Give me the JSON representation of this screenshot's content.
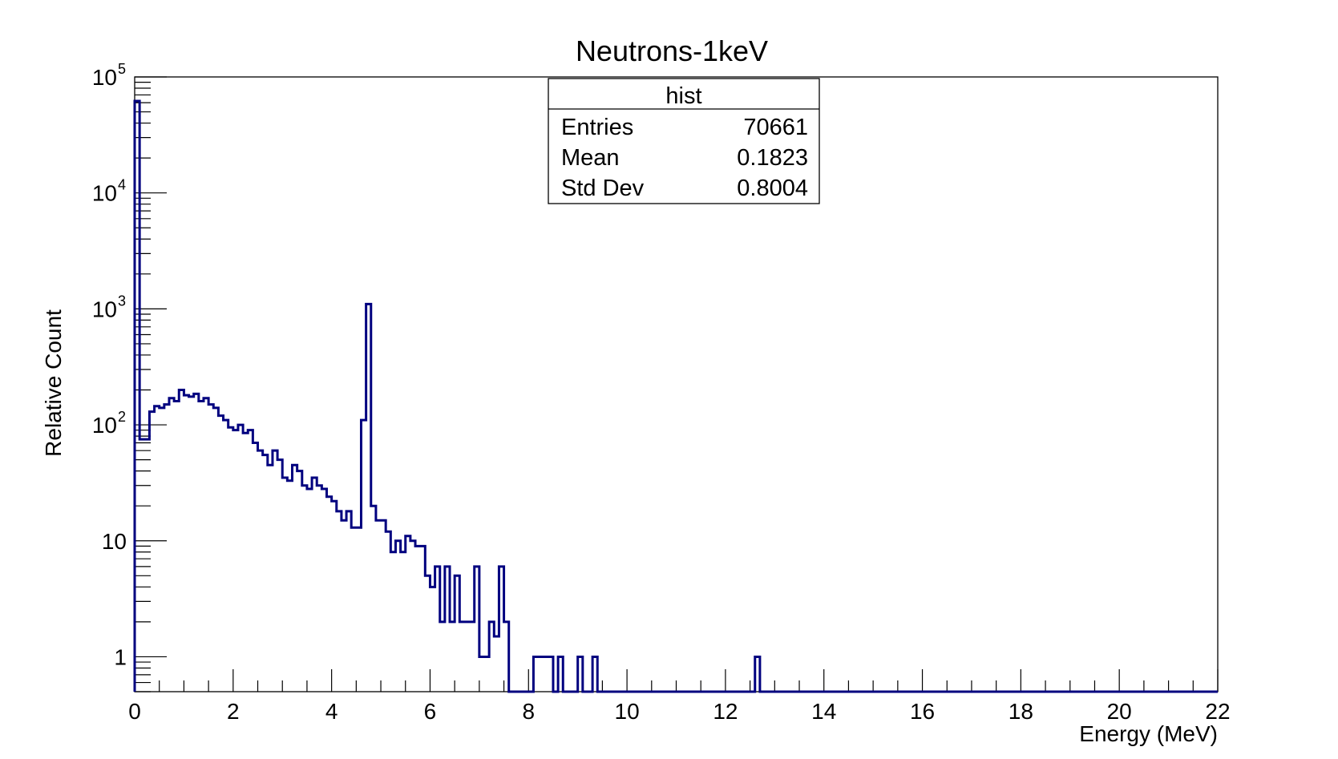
{
  "chart_data": {
    "type": "histogram",
    "title": "Neutrons-1keV",
    "xlabel": "Energy (MeV)",
    "ylabel": "Relative Count",
    "xlim": [
      0,
      22
    ],
    "ylim": [
      0.5,
      100000
    ],
    "y_scale": "log",
    "bin_width": 0.1,
    "line_color": "#00007f",
    "x_ticks": [
      "0",
      "2",
      "4",
      "6",
      "8",
      "10",
      "12",
      "14",
      "16",
      "18",
      "20",
      "22"
    ],
    "y_ticks": [
      {
        "value": 1,
        "label": "1",
        "exp": ""
      },
      {
        "value": 10,
        "label": "10",
        "exp": ""
      },
      {
        "value": 100,
        "label": "10",
        "exp": "2"
      },
      {
        "value": 1000,
        "label": "10",
        "exp": "3"
      },
      {
        "value": 10000,
        "label": "10",
        "exp": "4"
      },
      {
        "value": 100000,
        "label": "10",
        "exp": "5"
      }
    ],
    "bin_contents": [
      62000,
      75,
      75,
      130,
      145,
      140,
      150,
      170,
      160,
      200,
      180,
      175,
      185,
      160,
      170,
      150,
      140,
      120,
      110,
      95,
      90,
      100,
      85,
      90,
      70,
      60,
      55,
      45,
      60,
      50,
      35,
      33,
      45,
      40,
      30,
      28,
      35,
      30,
      28,
      24,
      22,
      18,
      15,
      18,
      13,
      13,
      110,
      1100,
      20,
      15,
      15,
      12,
      8,
      10,
      8,
      11,
      10,
      9,
      9,
      5,
      4,
      6,
      2,
      6,
      2,
      5,
      2,
      2,
      2,
      6,
      1,
      1,
      2,
      1.5,
      6,
      2,
      0.5,
      0.5,
      0.5,
      0,
      0,
      1,
      1,
      1,
      1,
      0.5,
      1,
      0.5,
      0.5,
      0,
      1,
      0,
      0,
      1,
      0
    ],
    "late_bins": [
      {
        "x": 12.6,
        "value": 1
      }
    ],
    "stats": {
      "title": "hist",
      "rows": [
        {
          "label": "Entries",
          "value": "70661"
        },
        {
          "label": "Mean",
          "value": "0.1823"
        },
        {
          "label": "Std Dev",
          "value": "0.8004"
        }
      ]
    }
  }
}
